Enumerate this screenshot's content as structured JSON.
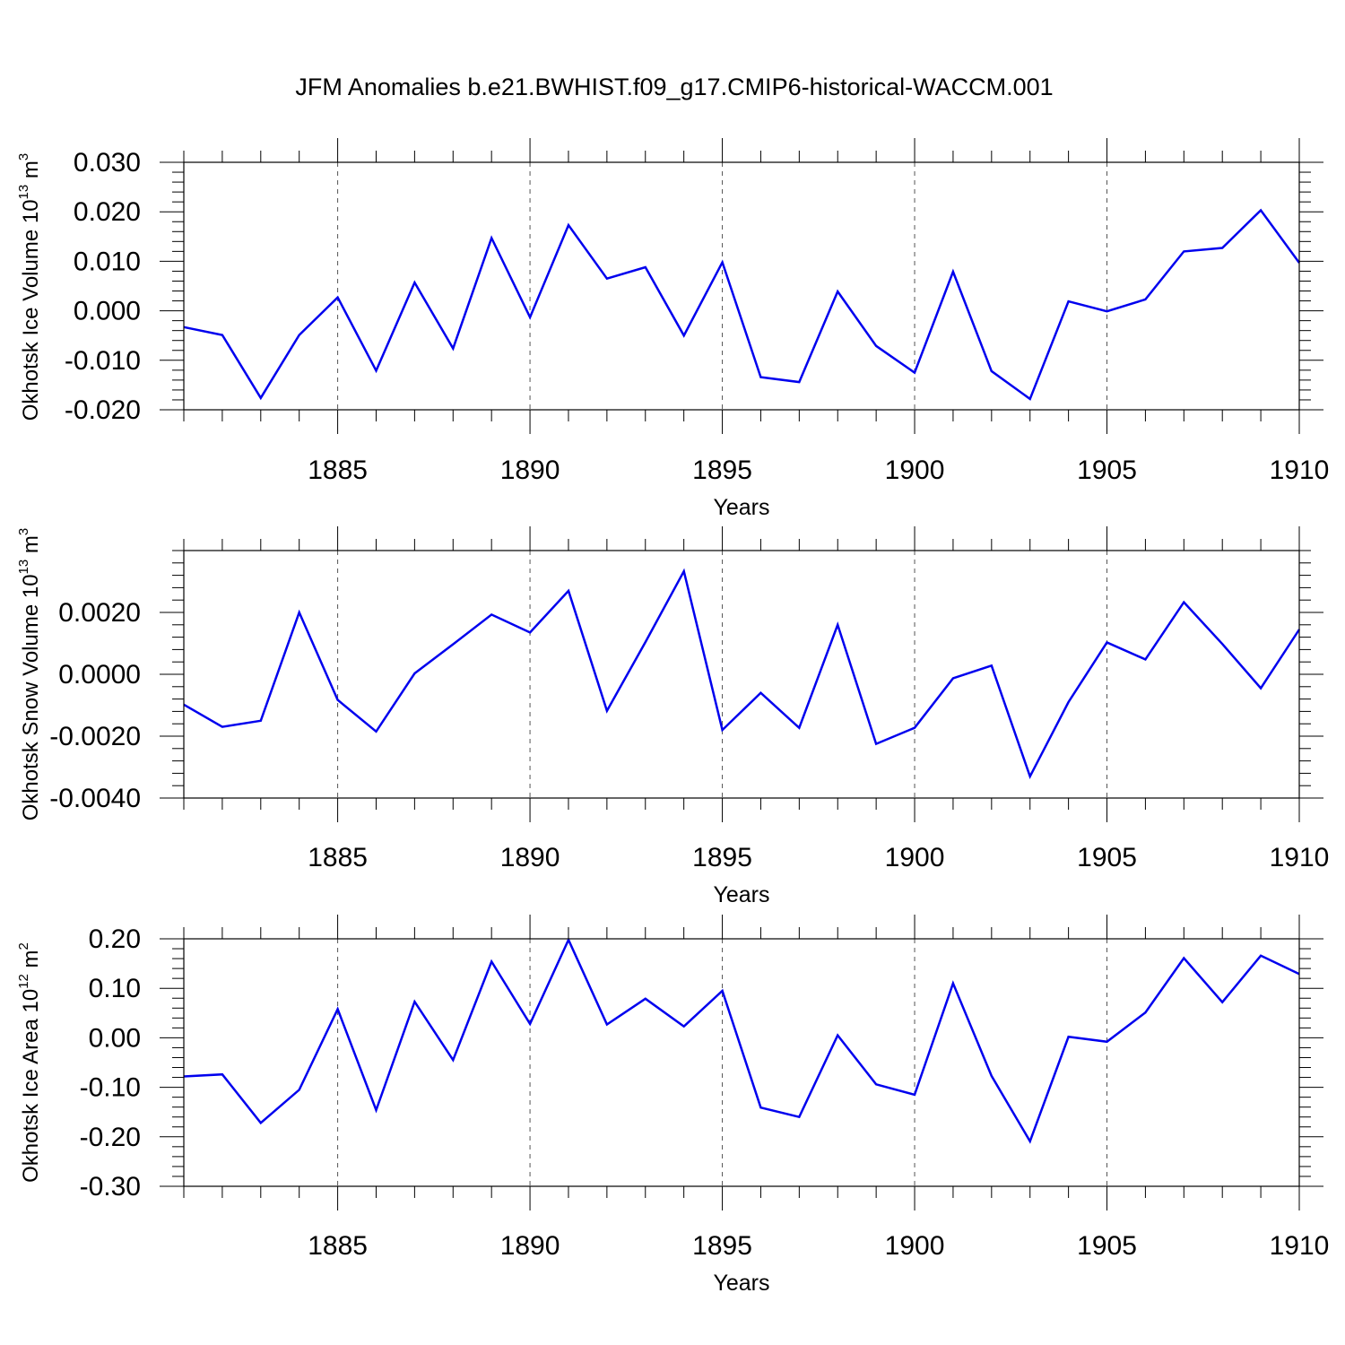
{
  "title": "JFM Anomalies b.e21.BWHIST.f09_g17.CMIP6-historical-WACCM.001",
  "colors": {
    "line": "#0000ee",
    "axis": "#000000",
    "grid": "#555555"
  },
  "chart_data": [
    {
      "type": "line",
      "ylabel": "Okhotsk Ice Volume 10",
      "ylabel_exp": "13",
      "ylabel_unit": " m",
      "ylabel_unit_exp": "3",
      "xlabel": "Years",
      "xlim": [
        1881,
        1910
      ],
      "ylim": [
        -0.02,
        0.03
      ],
      "yticks": [
        -0.02,
        -0.01,
        0.0,
        0.01,
        0.02,
        0.03
      ],
      "ytick_labels": [
        "-0.020",
        "-0.010",
        "0.000",
        "0.010",
        "0.020",
        "0.030"
      ],
      "xticks": [
        1885,
        1890,
        1895,
        1900,
        1905,
        1910
      ],
      "xtick_labels": [
        "1885",
        "1890",
        "1895",
        "1900",
        "1905",
        "1910"
      ],
      "x": [
        1881,
        1882,
        1883,
        1884,
        1885,
        1886,
        1887,
        1888,
        1889,
        1890,
        1891,
        1892,
        1893,
        1894,
        1895,
        1896,
        1897,
        1898,
        1899,
        1900,
        1901,
        1902,
        1903,
        1904,
        1905,
        1906,
        1907,
        1908,
        1909,
        1910
      ],
      "values": [
        -0.0033,
        -0.0049,
        -0.0176,
        -0.0049,
        0.0027,
        -0.0121,
        0.0057,
        -0.0076,
        0.0147,
        -0.0013,
        0.0173,
        0.0065,
        0.0088,
        -0.005,
        0.0098,
        -0.0134,
        -0.0144,
        0.0039,
        -0.0071,
        -0.0125,
        0.0079,
        -0.0122,
        -0.0178,
        0.0019,
        -0.0001,
        0.0023,
        0.012,
        0.0127,
        0.0203,
        0.0097
      ]
    },
    {
      "type": "line",
      "ylabel": "Okhotsk Snow Volume 10",
      "ylabel_exp": "13",
      "ylabel_unit": " m",
      "ylabel_unit_exp": "3",
      "xlabel": "Years",
      "xlim": [
        1881,
        1910
      ],
      "ylim": [
        -0.004,
        0.004
      ],
      "yticks": [
        -0.004,
        -0.002,
        0.0,
        0.002
      ],
      "ytick_labels": [
        "-0.0040",
        "-0.0020",
        "0.0000",
        "0.0020"
      ],
      "xticks": [
        1885,
        1890,
        1895,
        1900,
        1905,
        1910
      ],
      "xtick_labels": [
        "1885",
        "1890",
        "1895",
        "1900",
        "1905",
        "1910"
      ],
      "x": [
        1881,
        1882,
        1883,
        1884,
        1885,
        1886,
        1887,
        1888,
        1889,
        1890,
        1891,
        1892,
        1893,
        1894,
        1895,
        1896,
        1897,
        1898,
        1899,
        1900,
        1901,
        1902,
        1903,
        1904,
        1905,
        1906,
        1907,
        1908,
        1909,
        1910
      ],
      "values": [
        -0.00098,
        -0.0017,
        -0.0015,
        0.002,
        -0.00083,
        -0.00185,
        3e-05,
        0.00097,
        0.00193,
        0.00135,
        0.0027,
        -0.00118,
        0.00104,
        0.00333,
        -0.0018,
        -0.0006,
        -0.00173,
        0.0016,
        -0.00225,
        -0.00173,
        -0.00013,
        0.00028,
        -0.0033,
        -0.0009,
        0.00103,
        0.00048,
        0.00233,
        0.00098,
        -0.00045,
        0.00145
      ]
    },
    {
      "type": "line",
      "ylabel": "Okhotsk Ice Area 10",
      "ylabel_exp": "12",
      "ylabel_unit": " m",
      "ylabel_unit_exp": "2",
      "xlabel": "Years",
      "xlim": [
        1881,
        1910
      ],
      "ylim": [
        -0.3,
        0.2
      ],
      "yticks": [
        -0.3,
        -0.2,
        -0.1,
        0.0,
        0.1,
        0.2
      ],
      "ytick_labels": [
        "-0.30",
        "-0.20",
        "-0.10",
        "0.00",
        "0.10",
        "0.20"
      ],
      "xticks": [
        1885,
        1890,
        1895,
        1900,
        1905,
        1910
      ],
      "xtick_labels": [
        "1885",
        "1890",
        "1895",
        "1900",
        "1905",
        "1910"
      ],
      "x": [
        1881,
        1882,
        1883,
        1884,
        1885,
        1886,
        1887,
        1888,
        1889,
        1890,
        1891,
        1892,
        1893,
        1894,
        1895,
        1896,
        1897,
        1898,
        1899,
        1900,
        1901,
        1902,
        1903,
        1904,
        1905,
        1906,
        1907,
        1908,
        1909,
        1910
      ],
      "values": [
        -0.078,
        -0.074,
        -0.172,
        -0.105,
        0.058,
        -0.146,
        0.073,
        -0.045,
        0.154,
        0.028,
        0.198,
        0.027,
        0.079,
        0.023,
        0.095,
        -0.141,
        -0.16,
        0.005,
        -0.094,
        -0.115,
        0.11,
        -0.077,
        -0.209,
        0.002,
        -0.008,
        0.051,
        0.161,
        0.072,
        0.166,
        0.129
      ]
    }
  ]
}
